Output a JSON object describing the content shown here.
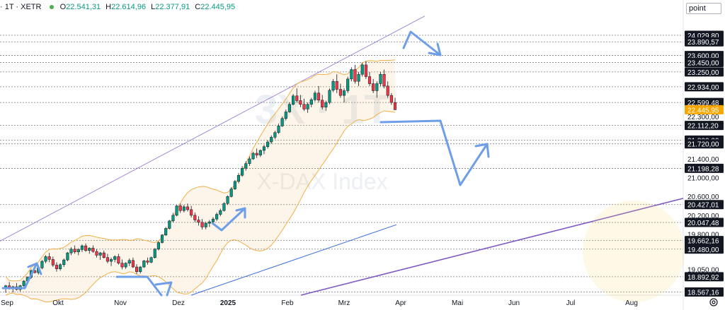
{
  "header": {
    "symbol_interval": "· 1T · XETR",
    "open_label": "O",
    "open": "22.541,31",
    "high_label": "H",
    "high": "22.614,96",
    "low_label": "L",
    "low": "22.377,91",
    "close_label": "C",
    "close": "22.445,95",
    "status_color": "#4caf50"
  },
  "price_axis": {
    "unit_label": "point",
    "settings_icon": "gear-icon"
  },
  "watermark": {
    "title": "3X · 1T",
    "subtitle": "X-DAX Index"
  },
  "chart_data": {
    "type": "candlestick",
    "x_ticks": [
      "Sep",
      "Okt",
      "Nov",
      "Dez",
      "2025",
      "Feb",
      "Mrz",
      "Apr",
      "Mai",
      "Jun",
      "Jul",
      "Aug"
    ],
    "bold_x_ticks": [
      "2025"
    ],
    "ylim": [
      18500,
      24450
    ],
    "y_levels_labeled": [
      {
        "value": 24029.8,
        "label": "24.029,80",
        "boxed": true
      },
      {
        "value": 23890.57,
        "label": "23.890,57",
        "boxed": true
      },
      {
        "value": 23600.0,
        "label": "23.600,00",
        "boxed": true
      },
      {
        "value": 23450.0,
        "label": "23.450,00",
        "boxed": true
      },
      {
        "value": 23250.0,
        "label": "23.250,00",
        "boxed": true
      },
      {
        "value": 22934.0,
        "label": "22.934,00",
        "boxed": true
      },
      {
        "value": 22599.48,
        "label": "22.599,48",
        "boxed": true
      },
      {
        "value": 22445.95,
        "label": "22.445,95",
        "boxed": true,
        "current": true
      },
      {
        "value": 22300.0,
        "label": "22.300,00",
        "boxed": false
      },
      {
        "value": 22112.2,
        "label": "22.112,20",
        "boxed": true
      },
      {
        "value": 21800.0,
        "label": "21.800,00",
        "boxed": true
      },
      {
        "value": 21720.0,
        "label": "21.720,00",
        "boxed": true
      },
      {
        "value": 21400.0,
        "label": "21.400,00",
        "boxed": false
      },
      {
        "value": 21198.28,
        "label": "21.198,28",
        "boxed": true
      },
      {
        "value": 21000.0,
        "label": "21.000,00",
        "boxed": false
      },
      {
        "value": 20600.0,
        "label": "20.600,00",
        "boxed": false
      },
      {
        "value": 20427.01,
        "label": "20.427,01",
        "boxed": true
      },
      {
        "value": 20200.0,
        "label": "20.200,00",
        "boxed": false
      },
      {
        "value": 20047.48,
        "label": "20.047,48",
        "boxed": true
      },
      {
        "value": 19800.0,
        "label": "19.800,00",
        "boxed": false
      },
      {
        "value": 19662.16,
        "label": "19.662,16",
        "boxed": true
      },
      {
        "value": 19480.0,
        "label": "19.480,00",
        "boxed": true
      },
      {
        "value": 19050.0,
        "label": "19.050,00",
        "boxed": false
      },
      {
        "value": 18892.92,
        "label": "18.892,92",
        "boxed": true
      },
      {
        "value": 18567.16,
        "label": "18.567,16",
        "boxed": true
      }
    ],
    "candles_note": "daily OHLC approximated from figure",
    "up_color": "#089981",
    "down_color": "#f23645",
    "current_price_color": "#f7a600",
    "band_color": "#f0b04a",
    "channel_color": "#7e57c2",
    "projection_color": "#6f9ee8",
    "candles": [
      [
        18650,
        18720,
        18550,
        18700
      ],
      [
        18700,
        18780,
        18620,
        18640
      ],
      [
        18640,
        18700,
        18560,
        18680
      ],
      [
        18680,
        18760,
        18600,
        18620
      ],
      [
        18620,
        18720,
        18580,
        18700
      ],
      [
        18700,
        18820,
        18680,
        18800
      ],
      [
        18800,
        18900,
        18760,
        18880
      ],
      [
        18880,
        19050,
        18850,
        19020
      ],
      [
        19020,
        19120,
        18960,
        18980
      ],
      [
        18980,
        19100,
        18940,
        19080
      ],
      [
        19080,
        19250,
        19050,
        19220
      ],
      [
        19220,
        19350,
        19180,
        19320
      ],
      [
        19320,
        19400,
        19200,
        19260
      ],
      [
        19260,
        19320,
        19100,
        19140
      ],
      [
        19140,
        19200,
        19000,
        19060
      ],
      [
        19060,
        19180,
        19020,
        19150
      ],
      [
        19150,
        19280,
        19100,
        19250
      ],
      [
        19250,
        19420,
        19220,
        19400
      ],
      [
        19400,
        19520,
        19350,
        19480
      ],
      [
        19480,
        19560,
        19380,
        19420
      ],
      [
        19420,
        19500,
        19350,
        19470
      ],
      [
        19470,
        19580,
        19420,
        19550
      ],
      [
        19550,
        19600,
        19420,
        19450
      ],
      [
        19450,
        19520,
        19380,
        19500
      ],
      [
        19500,
        19560,
        19400,
        19430
      ],
      [
        19430,
        19480,
        19300,
        19350
      ],
      [
        19350,
        19420,
        19250,
        19400
      ],
      [
        19400,
        19450,
        19280,
        19300
      ],
      [
        19300,
        19380,
        19180,
        19220
      ],
      [
        19220,
        19300,
        19120,
        19260
      ],
      [
        19260,
        19350,
        19200,
        19320
      ],
      [
        19320,
        19380,
        19150,
        19180
      ],
      [
        19180,
        19260,
        19050,
        19100
      ],
      [
        19100,
        19200,
        19060,
        19180
      ],
      [
        19180,
        19280,
        19120,
        19240
      ],
      [
        19240,
        19300,
        19080,
        19100
      ],
      [
        19100,
        19160,
        18950,
        19000
      ],
      [
        19000,
        19120,
        18960,
        19100
      ],
      [
        19100,
        19250,
        19080,
        19230
      ],
      [
        19230,
        19300,
        19150,
        19200
      ],
      [
        19200,
        19320,
        19180,
        19300
      ],
      [
        19300,
        19500,
        19280,
        19480
      ],
      [
        19480,
        19650,
        19450,
        19620
      ],
      [
        19620,
        19800,
        19600,
        19780
      ],
      [
        19780,
        19950,
        19760,
        19920
      ],
      [
        19920,
        20100,
        19900,
        20080
      ],
      [
        20080,
        20250,
        20050,
        20200
      ],
      [
        20200,
        20420,
        20180,
        20400
      ],
      [
        20400,
        20450,
        20250,
        20300
      ],
      [
        20300,
        20420,
        20260,
        20380
      ],
      [
        20380,
        20450,
        20280,
        20320
      ],
      [
        20320,
        20400,
        20150,
        20200
      ],
      [
        20200,
        20260,
        20050,
        20100
      ],
      [
        20100,
        20180,
        19980,
        20050
      ],
      [
        20050,
        20120,
        19900,
        19950
      ],
      [
        19950,
        20060,
        19900,
        20030
      ],
      [
        20030,
        20100,
        19950,
        20060
      ],
      [
        20060,
        20160,
        20020,
        20120
      ],
      [
        20120,
        20260,
        20080,
        20220
      ],
      [
        20220,
        20340,
        20180,
        20300
      ],
      [
        20300,
        20480,
        20280,
        20450
      ],
      [
        20450,
        20620,
        20420,
        20600
      ],
      [
        20600,
        20800,
        20580,
        20760
      ],
      [
        20760,
        20950,
        20740,
        20920
      ],
      [
        20920,
        21100,
        20880,
        21050
      ],
      [
        21050,
        21250,
        21020,
        21200
      ],
      [
        21200,
        21350,
        21150,
        21300
      ],
      [
        21300,
        21450,
        21250,
        21400
      ],
      [
        21400,
        21550,
        21380,
        21520
      ],
      [
        21520,
        21620,
        21420,
        21480
      ],
      [
        21480,
        21600,
        21440,
        21580
      ],
      [
        21580,
        21700,
        21500,
        21660
      ],
      [
        21660,
        21800,
        21620,
        21760
      ],
      [
        21760,
        21900,
        21720,
        21860
      ],
      [
        21860,
        22000,
        21820,
        21960
      ],
      [
        21960,
        22150,
        21930,
        22100
      ],
      [
        22100,
        22300,
        22080,
        22260
      ],
      [
        22260,
        22450,
        22220,
        22400
      ],
      [
        22400,
        22600,
        22380,
        22560
      ],
      [
        22560,
        22780,
        22540,
        22740
      ],
      [
        22740,
        22900,
        22600,
        22640
      ],
      [
        22640,
        22760,
        22500,
        22560
      ],
      [
        22560,
        22680,
        22420,
        22460
      ],
      [
        22460,
        22600,
        22380,
        22560
      ],
      [
        22560,
        22700,
        22500,
        22660
      ],
      [
        22660,
        22850,
        22620,
        22800
      ],
      [
        22800,
        22950,
        22600,
        22650
      ],
      [
        22650,
        22760,
        22450,
        22500
      ],
      [
        22500,
        22640,
        22420,
        22600
      ],
      [
        22600,
        22900,
        22560,
        22860
      ],
      [
        22860,
        23100,
        22820,
        23050
      ],
      [
        23050,
        23200,
        22800,
        22880
      ],
      [
        22880,
        23000,
        22700,
        22750
      ],
      [
        22750,
        22900,
        22600,
        22850
      ],
      [
        22850,
        23150,
        22800,
        23100
      ],
      [
        23100,
        23350,
        23050,
        23300
      ],
      [
        23300,
        23400,
        23000,
        23050
      ],
      [
        23050,
        23250,
        22950,
        23200
      ],
      [
        23200,
        23450,
        23150,
        23400
      ],
      [
        23400,
        23480,
        23100,
        23150
      ],
      [
        23150,
        23250,
        22950,
        23000
      ],
      [
        23000,
        23100,
        22800,
        22850
      ],
      [
        22850,
        23050,
        22700,
        23000
      ],
      [
        23000,
        23250,
        22950,
        23200
      ],
      [
        23200,
        23300,
        22900,
        22950
      ],
      [
        22950,
        23050,
        22700,
        22750
      ],
      [
        22750,
        22800,
        22550,
        22600
      ],
      [
        22600,
        22700,
        22440,
        22446
      ]
    ]
  }
}
